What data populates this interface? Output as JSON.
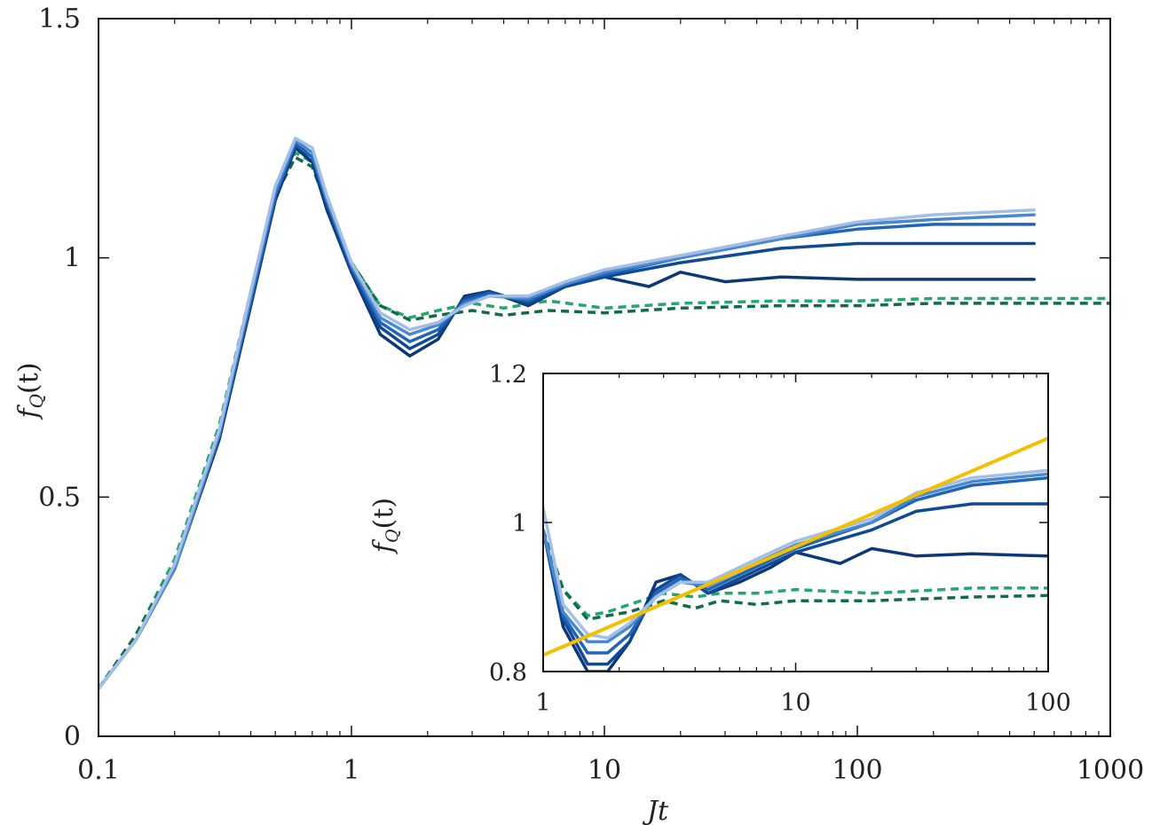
{
  "chart_data": [
    {
      "id": "main",
      "type": "line",
      "xscale": "log",
      "xlim": [
        0.1,
        1000
      ],
      "ylim": [
        0,
        1.5
      ],
      "xlabel": "Jt",
      "ylabel": "f_Q(t)",
      "xlabel_main": "J",
      "xlabel_sub": "t",
      "ylabel_f": "f",
      "ylabel_q": "Q",
      "ylabel_arg": "(t)",
      "xticks": [
        0.1,
        1,
        10,
        100,
        1000
      ],
      "xtick_labels": [
        "0.1",
        "1",
        "10",
        "100",
        "1000"
      ],
      "yticks": [
        0,
        0.5,
        1,
        1.5
      ],
      "ytick_labels": [
        "0",
        "0.5",
        "1",
        "1.5"
      ],
      "series": [
        {
          "name": "green-light-dashed",
          "color": "#22a86a",
          "dash": true,
          "x": [
            0.1,
            0.14,
            0.2,
            0.3,
            0.4,
            0.5,
            0.6,
            0.7,
            0.8,
            1.0,
            1.3,
            1.7,
            2.2,
            3,
            4,
            6,
            10,
            20,
            50,
            100,
            200,
            500,
            1000
          ],
          "y": [
            0.1,
            0.21,
            0.37,
            0.65,
            0.93,
            1.14,
            1.22,
            1.2,
            1.12,
            0.99,
            0.9,
            0.875,
            0.89,
            0.905,
            0.895,
            0.91,
            0.895,
            0.905,
            0.91,
            0.91,
            0.915,
            0.915,
            0.915
          ]
        },
        {
          "name": "green-dark-dashed",
          "color": "#136b4a",
          "dash": true,
          "x": [
            0.1,
            0.14,
            0.2,
            0.3,
            0.4,
            0.5,
            0.6,
            0.7,
            0.8,
            1.0,
            1.3,
            1.7,
            2.2,
            3,
            4,
            6,
            10,
            20,
            50,
            100,
            200,
            500,
            1000
          ],
          "y": [
            0.1,
            0.21,
            0.36,
            0.64,
            0.92,
            1.13,
            1.21,
            1.19,
            1.11,
            0.99,
            0.9,
            0.87,
            0.88,
            0.89,
            0.88,
            0.89,
            0.885,
            0.895,
            0.9,
            0.9,
            0.905,
            0.905,
            0.905
          ]
        },
        {
          "name": "blue-1",
          "color": "#0d3878",
          "dash": false,
          "x": [
            0.1,
            0.14,
            0.2,
            0.3,
            0.4,
            0.5,
            0.6,
            0.7,
            0.8,
            1.0,
            1.3,
            1.7,
            2.2,
            2.8,
            3.5,
            5,
            7,
            10,
            15,
            20,
            30,
            50,
            100,
            200,
            500
          ],
          "y": [
            0.1,
            0.2,
            0.35,
            0.62,
            0.9,
            1.12,
            1.23,
            1.2,
            1.1,
            0.97,
            0.84,
            0.795,
            0.83,
            0.92,
            0.93,
            0.9,
            0.94,
            0.96,
            0.94,
            0.97,
            0.95,
            0.96,
            0.955,
            0.955,
            0.955
          ]
        },
        {
          "name": "blue-2",
          "color": "#104a96",
          "dash": false,
          "x": [
            0.1,
            0.14,
            0.2,
            0.3,
            0.4,
            0.5,
            0.6,
            0.7,
            0.8,
            1.0,
            1.3,
            1.7,
            2.2,
            2.8,
            3.5,
            5,
            7,
            10,
            20,
            50,
            100,
            200,
            500
          ],
          "y": [
            0.1,
            0.2,
            0.35,
            0.63,
            0.91,
            1.13,
            1.235,
            1.21,
            1.11,
            0.975,
            0.855,
            0.81,
            0.84,
            0.915,
            0.93,
            0.905,
            0.94,
            0.96,
            0.99,
            1.02,
            1.03,
            1.03,
            1.03
          ]
        },
        {
          "name": "blue-3",
          "color": "#2065b8",
          "dash": false,
          "x": [
            0.1,
            0.14,
            0.2,
            0.3,
            0.4,
            0.5,
            0.6,
            0.7,
            0.8,
            1.0,
            1.3,
            1.7,
            2.2,
            2.8,
            3.5,
            5,
            7,
            10,
            20,
            50,
            100,
            200,
            500
          ],
          "y": [
            0.1,
            0.2,
            0.35,
            0.63,
            0.91,
            1.13,
            1.24,
            1.21,
            1.12,
            0.98,
            0.865,
            0.825,
            0.85,
            0.91,
            0.925,
            0.91,
            0.945,
            0.965,
            1.0,
            1.04,
            1.06,
            1.07,
            1.07
          ]
        },
        {
          "name": "blue-4",
          "color": "#4a88d0",
          "dash": false,
          "x": [
            0.1,
            0.14,
            0.2,
            0.3,
            0.4,
            0.5,
            0.6,
            0.7,
            0.8,
            1.0,
            1.3,
            1.7,
            2.2,
            2.8,
            3.5,
            5,
            7,
            10,
            20,
            50,
            100,
            200,
            500
          ],
          "y": [
            0.1,
            0.2,
            0.35,
            0.63,
            0.92,
            1.14,
            1.245,
            1.22,
            1.12,
            0.985,
            0.875,
            0.84,
            0.86,
            0.905,
            0.92,
            0.915,
            0.945,
            0.97,
            1.0,
            1.04,
            1.07,
            1.08,
            1.09
          ]
        },
        {
          "name": "blue-5",
          "color": "#a4bfe6",
          "dash": false,
          "x": [
            0.1,
            0.14,
            0.2,
            0.3,
            0.4,
            0.5,
            0.6,
            0.7,
            0.8,
            1.0,
            1.3,
            1.7,
            2.2,
            2.8,
            3.5,
            5,
            7,
            10,
            20,
            50,
            100,
            200,
            500
          ],
          "y": [
            0.1,
            0.2,
            0.36,
            0.64,
            0.93,
            1.15,
            1.25,
            1.23,
            1.13,
            0.99,
            0.885,
            0.85,
            0.865,
            0.9,
            0.92,
            0.92,
            0.95,
            0.975,
            1.005,
            1.045,
            1.075,
            1.09,
            1.1
          ]
        }
      ]
    },
    {
      "id": "inset",
      "type": "line",
      "xscale": "log",
      "xlim": [
        1,
        100
      ],
      "ylim": [
        0.8,
        1.2
      ],
      "ylabel": "f_Q(t)",
      "ylabel_f": "f",
      "ylabel_q": "Q",
      "ylabel_arg": "(t)",
      "xticks": [
        1,
        10,
        100
      ],
      "xtick_labels": [
        "1",
        "10",
        "100"
      ],
      "yticks": [
        0.8,
        1,
        1.2
      ],
      "ytick_labels": [
        "0.8",
        "1",
        "1.2"
      ],
      "fit_line": {
        "color": "#f2c000",
        "x": [
          1,
          100
        ],
        "y": [
          0.822,
          1.113
        ]
      },
      "series": [
        {
          "name": "green-light-dashed",
          "color": "#22a86a",
          "dash": true,
          "x": [
            1,
            1.2,
            1.5,
            1.8,
            2.2,
            3,
            4,
            5,
            7,
            10,
            20,
            50,
            100
          ],
          "y": [
            0.99,
            0.91,
            0.875,
            0.88,
            0.89,
            0.905,
            0.9,
            0.905,
            0.905,
            0.91,
            0.905,
            0.912,
            0.912
          ]
        },
        {
          "name": "green-dark-dashed",
          "color": "#136b4a",
          "dash": true,
          "x": [
            1,
            1.2,
            1.5,
            1.8,
            2.2,
            3,
            4,
            5,
            7,
            10,
            20,
            50,
            100
          ],
          "y": [
            0.99,
            0.91,
            0.87,
            0.875,
            0.88,
            0.895,
            0.885,
            0.895,
            0.89,
            0.895,
            0.895,
            0.9,
            0.902
          ]
        },
        {
          "name": "blue-1",
          "color": "#0d3878",
          "dash": false,
          "x": [
            1,
            1.2,
            1.5,
            1.8,
            2.2,
            2.8,
            3.5,
            4.5,
            6,
            8,
            10,
            15,
            20,
            30,
            50,
            100
          ],
          "y": [
            0.99,
            0.86,
            0.8,
            0.8,
            0.84,
            0.92,
            0.93,
            0.905,
            0.92,
            0.94,
            0.96,
            0.945,
            0.965,
            0.955,
            0.958,
            0.955
          ]
        },
        {
          "name": "blue-2",
          "color": "#104a96",
          "dash": false,
          "x": [
            1,
            1.2,
            1.5,
            1.8,
            2.2,
            2.8,
            3.5,
            4.5,
            6,
            8,
            10,
            20,
            30,
            50,
            100
          ],
          "y": [
            0.99,
            0.87,
            0.81,
            0.81,
            0.84,
            0.91,
            0.93,
            0.905,
            0.925,
            0.945,
            0.96,
            0.99,
            1.015,
            1.025,
            1.025
          ]
        },
        {
          "name": "blue-3",
          "color": "#2065b8",
          "dash": false,
          "x": [
            1,
            1.2,
            1.5,
            1.8,
            2.2,
            2.8,
            3.5,
            4.5,
            6,
            8,
            10,
            20,
            30,
            50,
            100
          ],
          "y": [
            0.99,
            0.875,
            0.825,
            0.825,
            0.85,
            0.905,
            0.925,
            0.91,
            0.93,
            0.95,
            0.965,
            1.0,
            1.03,
            1.05,
            1.06
          ]
        },
        {
          "name": "blue-4",
          "color": "#4a88d0",
          "dash": false,
          "x": [
            1,
            1.2,
            1.5,
            1.8,
            2.2,
            2.8,
            3.5,
            4.5,
            6,
            8,
            10,
            20,
            30,
            50,
            100
          ],
          "y": [
            0.99,
            0.88,
            0.84,
            0.84,
            0.86,
            0.9,
            0.92,
            0.915,
            0.935,
            0.955,
            0.97,
            1.0,
            1.035,
            1.055,
            1.065
          ]
        },
        {
          "name": "blue-5",
          "color": "#a4bfe6",
          "dash": false,
          "x": [
            1,
            1.2,
            1.5,
            1.8,
            2.2,
            2.8,
            3.5,
            4.5,
            6,
            8,
            10,
            20,
            30,
            50,
            100
          ],
          "y": [
            1.02,
            0.89,
            0.85,
            0.845,
            0.865,
            0.9,
            0.92,
            0.92,
            0.94,
            0.96,
            0.975,
            1.005,
            1.04,
            1.06,
            1.07
          ]
        }
      ]
    }
  ]
}
